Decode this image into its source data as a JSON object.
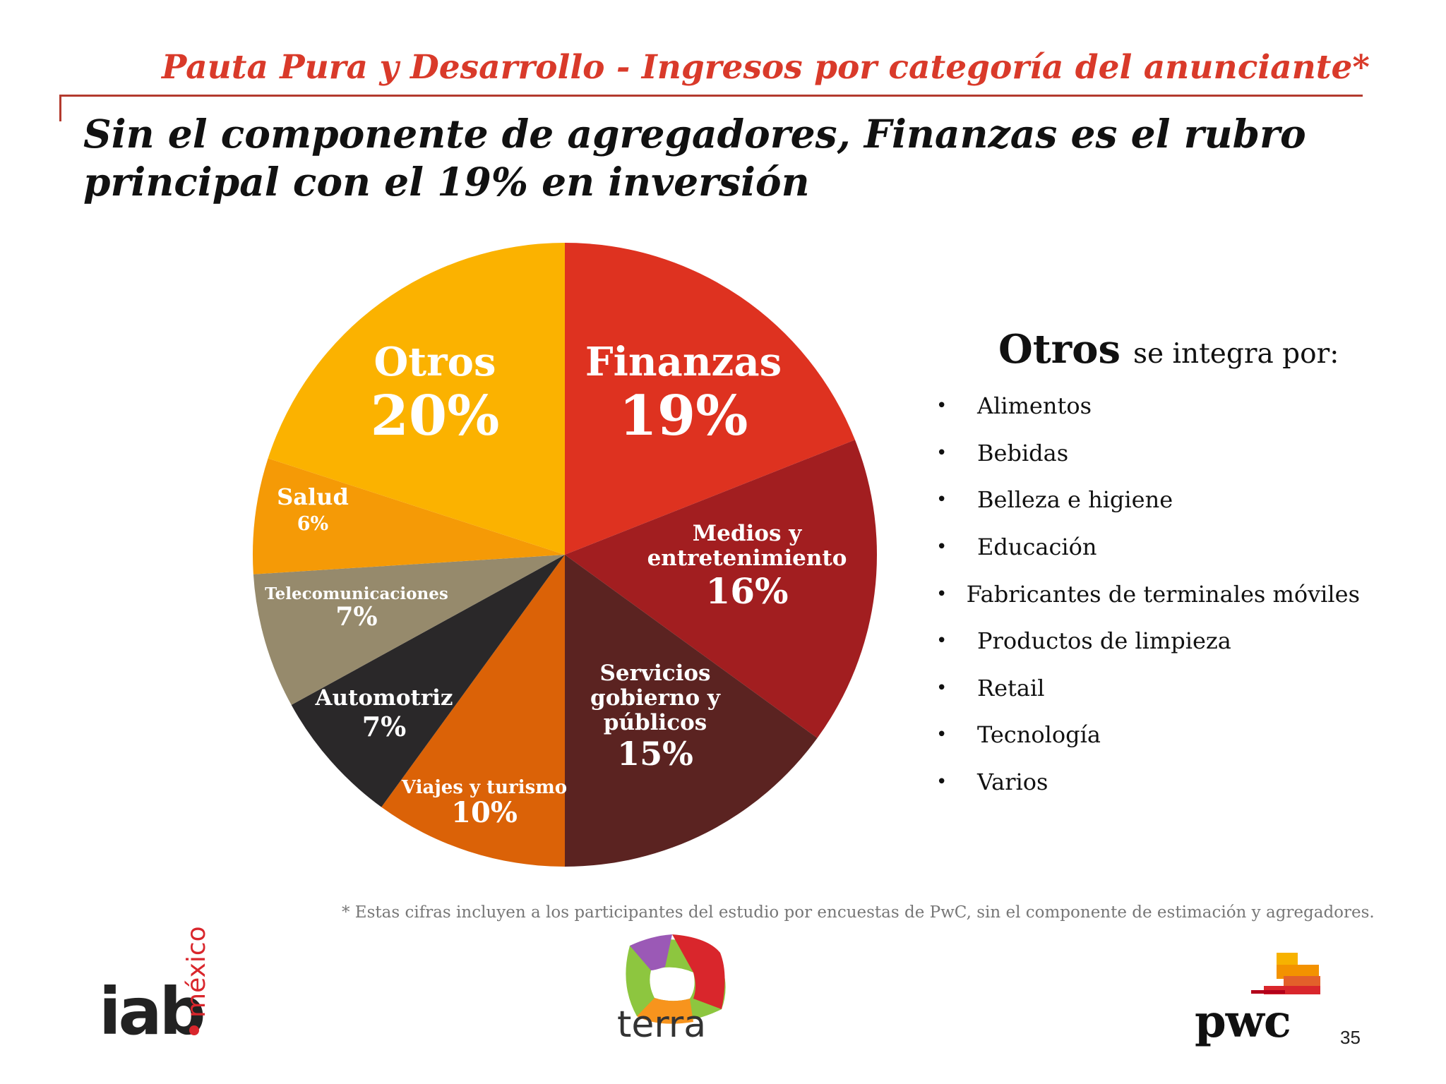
{
  "header": {
    "title": "Pauta Pura y Desarrollo - Ingresos por categoría del anunciante*",
    "headline_line1": "Sin el componente de agregadores, Finanzas es el rubro",
    "headline_line2": "principal con  el  19%  en inversión"
  },
  "chart_data": {
    "type": "pie",
    "slices": [
      {
        "label": "Finanzas",
        "value_label": "19%",
        "value": 19,
        "color": "#de3220"
      },
      {
        "label": "Medios y entretenimiento",
        "label_lines": [
          "Medios y",
          "entretenimiento"
        ],
        "value_label": "16%",
        "value": 16,
        "color": "#a21e20"
      },
      {
        "label": "Servicios gobierno y públicos",
        "label_lines": [
          "Servicios",
          "gobierno y",
          "públicos"
        ],
        "value_label": "15%",
        "value": 15,
        "color": "#5b2321"
      },
      {
        "label": "Viajes y turismo",
        "value_label": "10%",
        "value": 10,
        "color": "#db6207"
      },
      {
        "label": "Automotriz",
        "value_label": "7%",
        "value": 7,
        "color": "#2a2829"
      },
      {
        "label": "Telecomunicaciones",
        "value_label": "7%",
        "value": 7,
        "color": "#968a6c"
      },
      {
        "label": "Salud",
        "value_label": "6%",
        "value": 6,
        "color": "#f59a06"
      },
      {
        "label": "Otros",
        "value_label": "20%",
        "value": 20,
        "color": "#fbb200"
      }
    ]
  },
  "otros_panel": {
    "heading_strong": "Otros",
    "heading_rest": "se integra por:",
    "bullet": "•",
    "items": [
      "Alimentos",
      "Bebidas",
      "Belleza e higiene",
      "Educación",
      "Fabricantes de terminales móviles",
      "Productos de limpieza",
      "Retail",
      "Tecnología",
      "Varios"
    ]
  },
  "footnote": "* Estas cifras incluyen a los participantes del estudio por encuestas de PwC, sin el componente de estimación y agregadores.",
  "logos": {
    "iab_text": "iab",
    "iab_sub": "méxico",
    "terra_text": "terra",
    "pwc_text": "pwc"
  },
  "page_number": "35"
}
